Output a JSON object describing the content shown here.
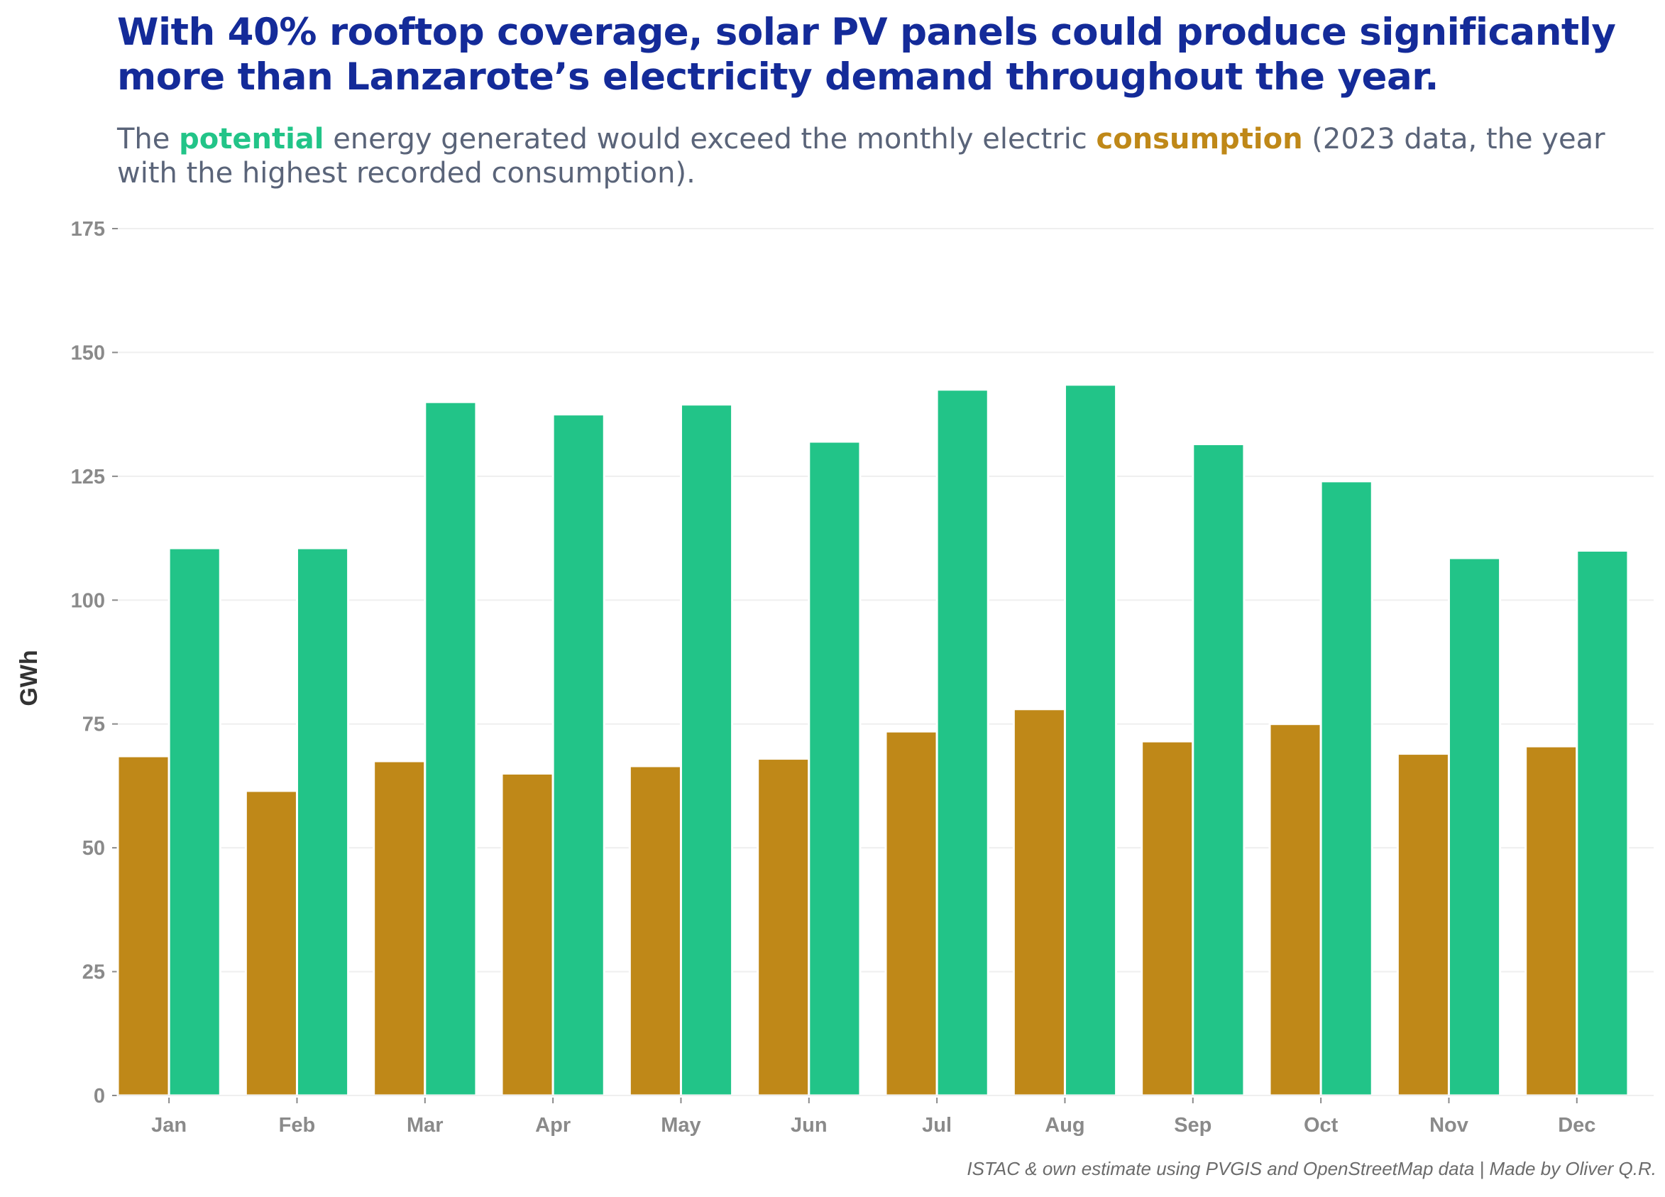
{
  "title": "With 40% rooftop coverage, solar PV panels could produce significantly more than Lanzarote’s electricity demand throughout the year.",
  "subtitle": {
    "part1": "The ",
    "highlight1": "potential",
    "part2": " energy generated would exceed the monthly electric ",
    "highlight2": "consumption",
    "part3": " (2023 data, the year with the highest recorded consumption)."
  },
  "caption": "ISTAC & own estimate using PVGIS and OpenStreetMap data | Made by Oliver Q.R.",
  "colors": {
    "consumption": "#bf8818",
    "potential": "#22c488",
    "title": "#142b99",
    "subtitle": "#5a6479",
    "grid": "#efefef"
  },
  "chart_data": {
    "type": "bar",
    "title": "With 40% rooftop coverage, solar PV panels could produce significantly more than Lanzarote’s electricity demand throughout the year.",
    "xlabel": "",
    "ylabel": "GWh",
    "ylim": [
      0,
      175
    ],
    "yticks": [
      0,
      25,
      50,
      75,
      100,
      125,
      150,
      175
    ],
    "grid": true,
    "categories": [
      "Jan",
      "Feb",
      "Mar",
      "Apr",
      "May",
      "Jun",
      "Jul",
      "Aug",
      "Sep",
      "Oct",
      "Nov",
      "Dec"
    ],
    "series": [
      {
        "name": "consumption",
        "color": "#bf8818",
        "values": [
          68.5,
          61.5,
          67.5,
          65.0,
          66.5,
          68.0,
          73.5,
          78.0,
          71.5,
          75.0,
          69.0,
          70.5
        ]
      },
      {
        "name": "potential",
        "color": "#22c488",
        "values": [
          110.5,
          110.5,
          140.0,
          137.5,
          139.5,
          132.0,
          142.5,
          143.5,
          131.5,
          124.0,
          108.5,
          110.0
        ]
      }
    ]
  }
}
